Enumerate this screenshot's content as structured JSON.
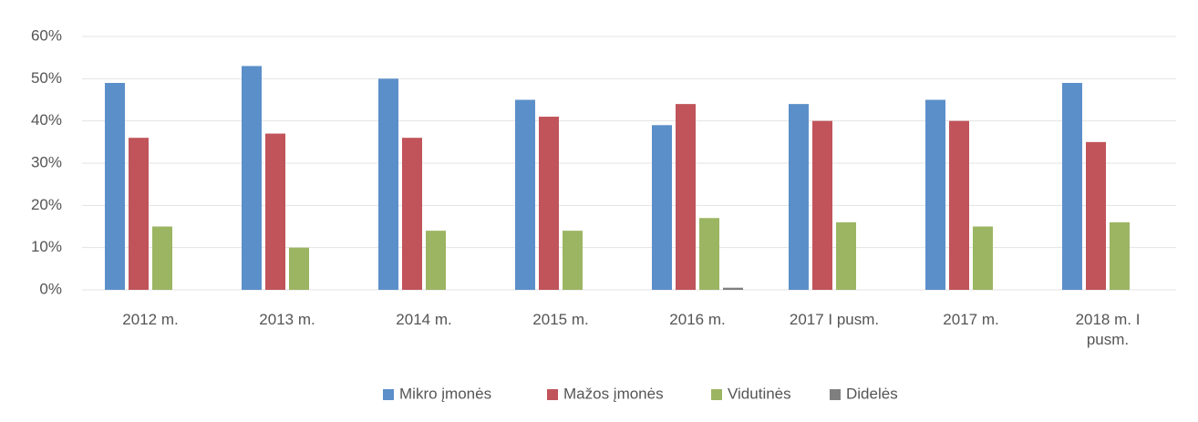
{
  "chart_data": {
    "type": "bar",
    "categories": [
      "2012 m.",
      "2013 m.",
      "2014 m.",
      "2015 m.",
      "2016 m.",
      "2017 I pusm.",
      "2017 m.",
      "2018 m. I pusm."
    ],
    "series": [
      {
        "name": "Mikro įmonės",
        "color": "#5b8fc9",
        "values": [
          49,
          53,
          50,
          45,
          39,
          44,
          45,
          49
        ]
      },
      {
        "name": "Mažos įmonės",
        "color": "#c0545a",
        "values": [
          36,
          37,
          36,
          41,
          44,
          40,
          40,
          35
        ]
      },
      {
        "name": "Vidutinės",
        "color": "#9bb563",
        "values": [
          15,
          10,
          14,
          14,
          17,
          16,
          15,
          16
        ]
      },
      {
        "name": "Didelės",
        "color": "#7f7f7f",
        "values": [
          0,
          0,
          0,
          0,
          0.5,
          0,
          0,
          0
        ]
      }
    ],
    "ylim": [
      0,
      60
    ],
    "yticks": [
      {
        "value": 0,
        "label": "0%"
      },
      {
        "value": 10,
        "label": "10%"
      },
      {
        "value": 20,
        "label": "20%"
      },
      {
        "value": 30,
        "label": "30%"
      },
      {
        "value": 40,
        "label": "40%"
      },
      {
        "value": 50,
        "label": "50%"
      },
      {
        "value": 60,
        "label": "60%"
      }
    ],
    "grid": true,
    "legend": "bottom"
  }
}
